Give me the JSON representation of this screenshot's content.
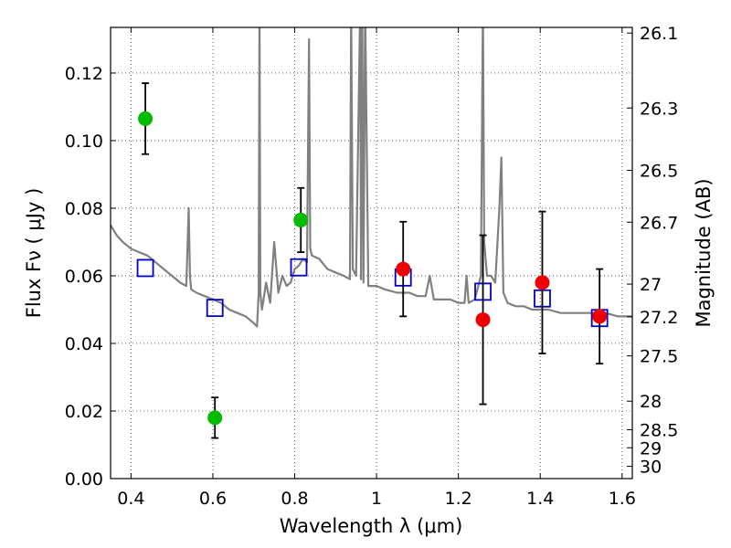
{
  "chart_data": {
    "type": "scatter",
    "xlabel": "Wavelength  λ (μm)",
    "ylabel": "Flux  Fν  ( μJy )",
    "y2label": "Magnitude (AB)",
    "xlim": [
      0.35,
      1.625
    ],
    "ylim": [
      0.0,
      0.1335
    ],
    "grid": true,
    "x_ticks": [
      0.4,
      0.6,
      0.8,
      1.0,
      1.2,
      1.4,
      1.6
    ],
    "x_tick_labels": [
      "0.4",
      "0.6",
      "0.8",
      "1",
      "1.2",
      "1.4",
      "1.6"
    ],
    "y_ticks": [
      0.0,
      0.02,
      0.04,
      0.06,
      0.08,
      0.1,
      0.12
    ],
    "y_tick_labels": [
      "0.00",
      "0.02",
      "0.04",
      "0.06",
      "0.08",
      "0.10",
      "0.12"
    ],
    "mag_ticks": [
      "26.1",
      "26.3",
      "26.5",
      "26.7",
      "27",
      "27.2",
      "27.5",
      "28",
      "28.5",
      "29",
      "30"
    ],
    "mag_zero_point": 23.9,
    "colors": {
      "model": "#808080",
      "green_points": "#00bb00",
      "red_points": "#ee0000",
      "boxes": "#0000cc",
      "errorbars": "#000000"
    },
    "series": [
      {
        "x": [
          0.435,
          0.605,
          0.815
        ],
        "y": [
          0.1065,
          0.018,
          0.0765
        ],
        "err": [
          0.0105,
          0.006,
          0.0095
        ]
      },
      {
        "x": [
          1.065,
          1.26,
          1.405,
          1.545
        ],
        "y": [
          0.062,
          0.047,
          0.058,
          0.048
        ],
        "err": [
          0.014,
          0.025,
          0.021,
          0.014
        ]
      },
      {
        "x": [
          0.435,
          0.605,
          0.81,
          1.065,
          1.26,
          1.405,
          1.545
        ],
        "y": [
          0.0623,
          0.0505,
          0.0625,
          0.0595,
          0.0553,
          0.0533,
          0.0475
        ]
      },
      {
        "x": [
          0.35,
          0.365,
          0.38,
          0.4,
          0.42,
          0.44,
          0.46,
          0.48,
          0.5,
          0.52,
          0.535,
          0.541,
          0.544,
          0.547,
          0.56,
          0.58,
          0.6,
          0.62,
          0.64,
          0.66,
          0.68,
          0.7,
          0.708,
          0.712,
          0.714,
          0.716,
          0.72,
          0.73,
          0.74,
          0.75,
          0.76,
          0.77,
          0.78,
          0.79,
          0.8,
          0.81,
          0.82,
          0.83,
          0.835,
          0.838,
          0.842,
          0.86,
          0.88,
          0.9,
          0.92,
          0.935,
          0.938,
          0.942,
          0.95,
          0.96,
          0.962,
          0.965,
          0.968,
          0.972,
          0.98,
          1.0,
          1.02,
          1.05,
          1.08,
          1.1,
          1.12,
          1.13,
          1.14,
          1.16,
          1.18,
          1.2,
          1.215,
          1.22,
          1.225,
          1.24,
          1.255,
          1.26,
          1.263,
          1.27,
          1.28,
          1.29,
          1.3,
          1.305,
          1.31,
          1.32,
          1.34,
          1.36,
          1.38,
          1.4,
          1.42,
          1.45,
          1.48,
          1.5,
          1.53,
          1.56,
          1.59,
          1.625
        ],
        "y": [
          0.075,
          0.072,
          0.07,
          0.068,
          0.067,
          0.066,
          0.064,
          0.062,
          0.06,
          0.058,
          0.057,
          0.08,
          0.06,
          0.056,
          0.055,
          0.054,
          0.053,
          0.052,
          0.05,
          0.049,
          0.048,
          0.046,
          0.045,
          0.055,
          0.14,
          0.055,
          0.05,
          0.058,
          0.052,
          0.07,
          0.055,
          0.06,
          0.057,
          0.058,
          0.062,
          0.063,
          0.065,
          0.064,
          0.13,
          0.068,
          0.066,
          0.065,
          0.062,
          0.061,
          0.06,
          0.059,
          0.14,
          0.062,
          0.06,
          0.14,
          0.059,
          0.14,
          0.058,
          0.14,
          0.057,
          0.057,
          0.056,
          0.055,
          0.055,
          0.054,
          0.054,
          0.06,
          0.053,
          0.053,
          0.053,
          0.052,
          0.052,
          0.06,
          0.052,
          0.053,
          0.06,
          0.14,
          0.07,
          0.06,
          0.06,
          0.058,
          0.08,
          0.095,
          0.055,
          0.052,
          0.051,
          0.051,
          0.05,
          0.05,
          0.05,
          0.049,
          0.049,
          0.049,
          0.049,
          0.049,
          0.048,
          0.048
        ]
      }
    ]
  }
}
